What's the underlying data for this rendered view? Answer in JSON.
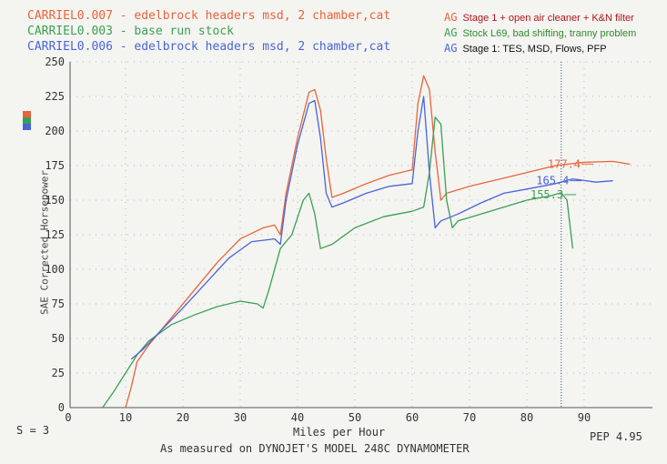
{
  "legend": [
    {
      "run": "CARRIEL0.007 - edelbrock headers msd, 2 chamber,cat",
      "tag": "AG",
      "note": "Stage 1 + open air cleaner + K&N filter",
      "color": "#e8643a"
    },
    {
      "run": "CARRIEL0.003 - base run  stock",
      "tag": "AG",
      "note": "Stock L69, bad shifting, tranny problem",
      "color": "#3aa052"
    },
    {
      "run": "CARRIEL0.006 - edelbrock headers msd, 2 chamber,cat",
      "tag": "AG",
      "note": "Stage 1: TES, MSD, Flows, PFP",
      "color": "#4a64d8"
    }
  ],
  "footer": {
    "smoothing": "S = 3",
    "version": "PEP 4.95",
    "measured": "As measured on DYNOJET'S MODEL 248C DYNAMOMETER"
  },
  "chart_data": {
    "type": "line",
    "xlabel": "Miles per Hour",
    "ylabel": "SAE Corrected Horsepower",
    "xlim": [
      0,
      100
    ],
    "ylim": [
      0,
      250
    ],
    "xticks": [
      0,
      10,
      20,
      30,
      40,
      50,
      60,
      70,
      80,
      90
    ],
    "yticks": [
      0,
      25,
      50,
      75,
      100,
      125,
      150,
      175,
      200,
      225,
      250
    ],
    "grid": true,
    "vline_x": 86,
    "series": [
      {
        "name": "CARRIEL0.007",
        "color": "#e8643a",
        "label_value": "177.4",
        "label_at": [
          90,
          177.4
        ],
        "points": [
          [
            10,
            0
          ],
          [
            11,
            15
          ],
          [
            12,
            33
          ],
          [
            14,
            45
          ],
          [
            18,
            65
          ],
          [
            22,
            85
          ],
          [
            26,
            105
          ],
          [
            30,
            122
          ],
          [
            34,
            130
          ],
          [
            36,
            132
          ],
          [
            37,
            125
          ],
          [
            38,
            155
          ],
          [
            40,
            195
          ],
          [
            42,
            228
          ],
          [
            43,
            230
          ],
          [
            44,
            215
          ],
          [
            45,
            180
          ],
          [
            46,
            152
          ],
          [
            48,
            155
          ],
          [
            52,
            162
          ],
          [
            56,
            168
          ],
          [
            60,
            172
          ],
          [
            61,
            220
          ],
          [
            62,
            240
          ],
          [
            63,
            230
          ],
          [
            64,
            185
          ],
          [
            65,
            150
          ],
          [
            66,
            155
          ],
          [
            70,
            160
          ],
          [
            75,
            165
          ],
          [
            80,
            170
          ],
          [
            85,
            175
          ],
          [
            90,
            177.4
          ],
          [
            95,
            178
          ],
          [
            98,
            176
          ]
        ]
      },
      {
        "name": "CARRIEL0.003",
        "color": "#3aa052",
        "label_value": "155.3",
        "label_at": [
          87,
          155.3
        ],
        "points": [
          [
            6,
            0
          ],
          [
            8,
            12
          ],
          [
            10,
            25
          ],
          [
            12,
            38
          ],
          [
            14,
            48
          ],
          [
            18,
            60
          ],
          [
            22,
            67
          ],
          [
            26,
            73
          ],
          [
            30,
            77
          ],
          [
            33,
            75
          ],
          [
            34,
            72
          ],
          [
            35,
            85
          ],
          [
            37,
            115
          ],
          [
            39,
            125
          ],
          [
            41,
            150
          ],
          [
            42,
            155
          ],
          [
            43,
            140
          ],
          [
            44,
            115
          ],
          [
            46,
            118
          ],
          [
            50,
            130
          ],
          [
            55,
            138
          ],
          [
            60,
            142
          ],
          [
            62,
            145
          ],
          [
            63,
            170
          ],
          [
            64,
            210
          ],
          [
            65,
            205
          ],
          [
            66,
            150
          ],
          [
            67,
            130
          ],
          [
            68,
            135
          ],
          [
            72,
            140
          ],
          [
            76,
            145
          ],
          [
            80,
            150
          ],
          [
            84,
            153
          ],
          [
            86,
            155.3
          ],
          [
            87,
            150
          ],
          [
            88,
            115
          ]
        ]
      },
      {
        "name": "CARRIEL0.006",
        "color": "#4a64d8",
        "label_value": "165.4",
        "label_at": [
          88,
          165.4
        ],
        "points": [
          [
            11,
            35
          ],
          [
            13,
            42
          ],
          [
            16,
            55
          ],
          [
            20,
            72
          ],
          [
            24,
            90
          ],
          [
            28,
            108
          ],
          [
            32,
            120
          ],
          [
            36,
            122
          ],
          [
            37,
            118
          ],
          [
            38,
            150
          ],
          [
            40,
            190
          ],
          [
            42,
            220
          ],
          [
            43,
            222
          ],
          [
            44,
            195
          ],
          [
            45,
            155
          ],
          [
            46,
            145
          ],
          [
            48,
            148
          ],
          [
            52,
            155
          ],
          [
            56,
            160
          ],
          [
            60,
            162
          ],
          [
            61,
            200
          ],
          [
            62,
            225
          ],
          [
            63,
            170
          ],
          [
            64,
            130
          ],
          [
            65,
            135
          ],
          [
            68,
            140
          ],
          [
            72,
            148
          ],
          [
            76,
            155
          ],
          [
            80,
            158
          ],
          [
            85,
            162
          ],
          [
            88,
            165.4
          ],
          [
            92,
            163
          ],
          [
            95,
            164
          ]
        ]
      }
    ]
  }
}
